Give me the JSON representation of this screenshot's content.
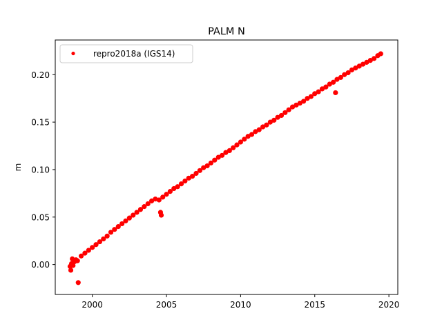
{
  "chart_data": {
    "type": "scatter",
    "title": "PALM N",
    "xlabel": "",
    "ylabel": "m",
    "xlim": [
      1997.5,
      2020.6
    ],
    "ylim": [
      -0.0315,
      0.2365
    ],
    "xticks": [
      2000,
      2005,
      2010,
      2015,
      2020
    ],
    "xtick_labels": [
      "2000",
      "2005",
      "2010",
      "2015",
      "2020"
    ],
    "yticks": [
      0.0,
      0.05,
      0.1,
      0.15,
      0.2
    ],
    "ytick_labels": [
      "0.00",
      "0.05",
      "0.10",
      "0.15",
      "0.20"
    ],
    "grid": false,
    "legend_position": "top-left",
    "series": [
      {
        "name": "repro2018a (IGS14)",
        "color": "#ff0000",
        "marker": "circle",
        "x": [
          1998.5,
          1998.6,
          1998.7,
          1998.8,
          1998.9,
          1999.0,
          1999.25,
          1999.5,
          1999.75,
          2000.0,
          2000.25,
          2000.5,
          2000.75,
          2001.0,
          2001.25,
          2001.5,
          2001.75,
          2002.0,
          2002.25,
          2002.5,
          2002.75,
          2003.0,
          2003.25,
          2003.5,
          2003.75,
          2004.0,
          2004.25,
          2004.5,
          2004.75,
          2005.0,
          2005.25,
          2005.5,
          2005.75,
          2006.0,
          2006.25,
          2006.5,
          2006.75,
          2007.0,
          2007.25,
          2007.5,
          2007.75,
          2008.0,
          2008.25,
          2008.5,
          2008.75,
          2009.0,
          2009.25,
          2009.5,
          2009.75,
          2010.0,
          2010.25,
          2010.5,
          2010.75,
          2011.0,
          2011.25,
          2011.5,
          2011.75,
          2012.0,
          2012.25,
          2012.5,
          2012.75,
          2013.0,
          2013.25,
          2013.5,
          2013.75,
          2014.0,
          2014.25,
          2014.5,
          2014.75,
          2015.0,
          2015.25,
          2015.5,
          2015.75,
          2016.0,
          2016.25,
          2016.5,
          2016.75,
          2017.0,
          2017.25,
          2017.5,
          2017.75,
          2018.0,
          2018.25,
          2018.5,
          2018.75,
          2019.0,
          2019.25,
          2019.45,
          1999.05,
          1998.55,
          1998.65,
          2004.6,
          2004.65,
          2016.4
        ],
        "y": [
          -0.002,
          0.001,
          -0.001,
          0.003,
          0.005,
          0.004,
          0.009,
          0.012,
          0.015,
          0.018,
          0.021,
          0.024,
          0.027,
          0.03,
          0.034,
          0.037,
          0.04,
          0.043,
          0.046,
          0.049,
          0.052,
          0.055,
          0.058,
          0.061,
          0.064,
          0.067,
          0.069,
          0.068,
          0.071,
          0.074,
          0.077,
          0.08,
          0.082,
          0.085,
          0.088,
          0.091,
          0.093,
          0.096,
          0.099,
          0.102,
          0.104,
          0.107,
          0.11,
          0.113,
          0.115,
          0.118,
          0.12,
          0.123,
          0.126,
          0.129,
          0.132,
          0.135,
          0.137,
          0.14,
          0.142,
          0.145,
          0.147,
          0.15,
          0.152,
          0.155,
          0.157,
          0.16,
          0.163,
          0.166,
          0.168,
          0.17,
          0.172,
          0.175,
          0.177,
          0.18,
          0.182,
          0.185,
          0.187,
          0.19,
          0.192,
          0.195,
          0.197,
          0.2,
          0.202,
          0.205,
          0.207,
          0.209,
          0.211,
          0.213,
          0.215,
          0.217,
          0.22,
          0.222,
          -0.019,
          -0.006,
          0.006,
          0.055,
          0.052,
          0.181
        ]
      }
    ]
  }
}
